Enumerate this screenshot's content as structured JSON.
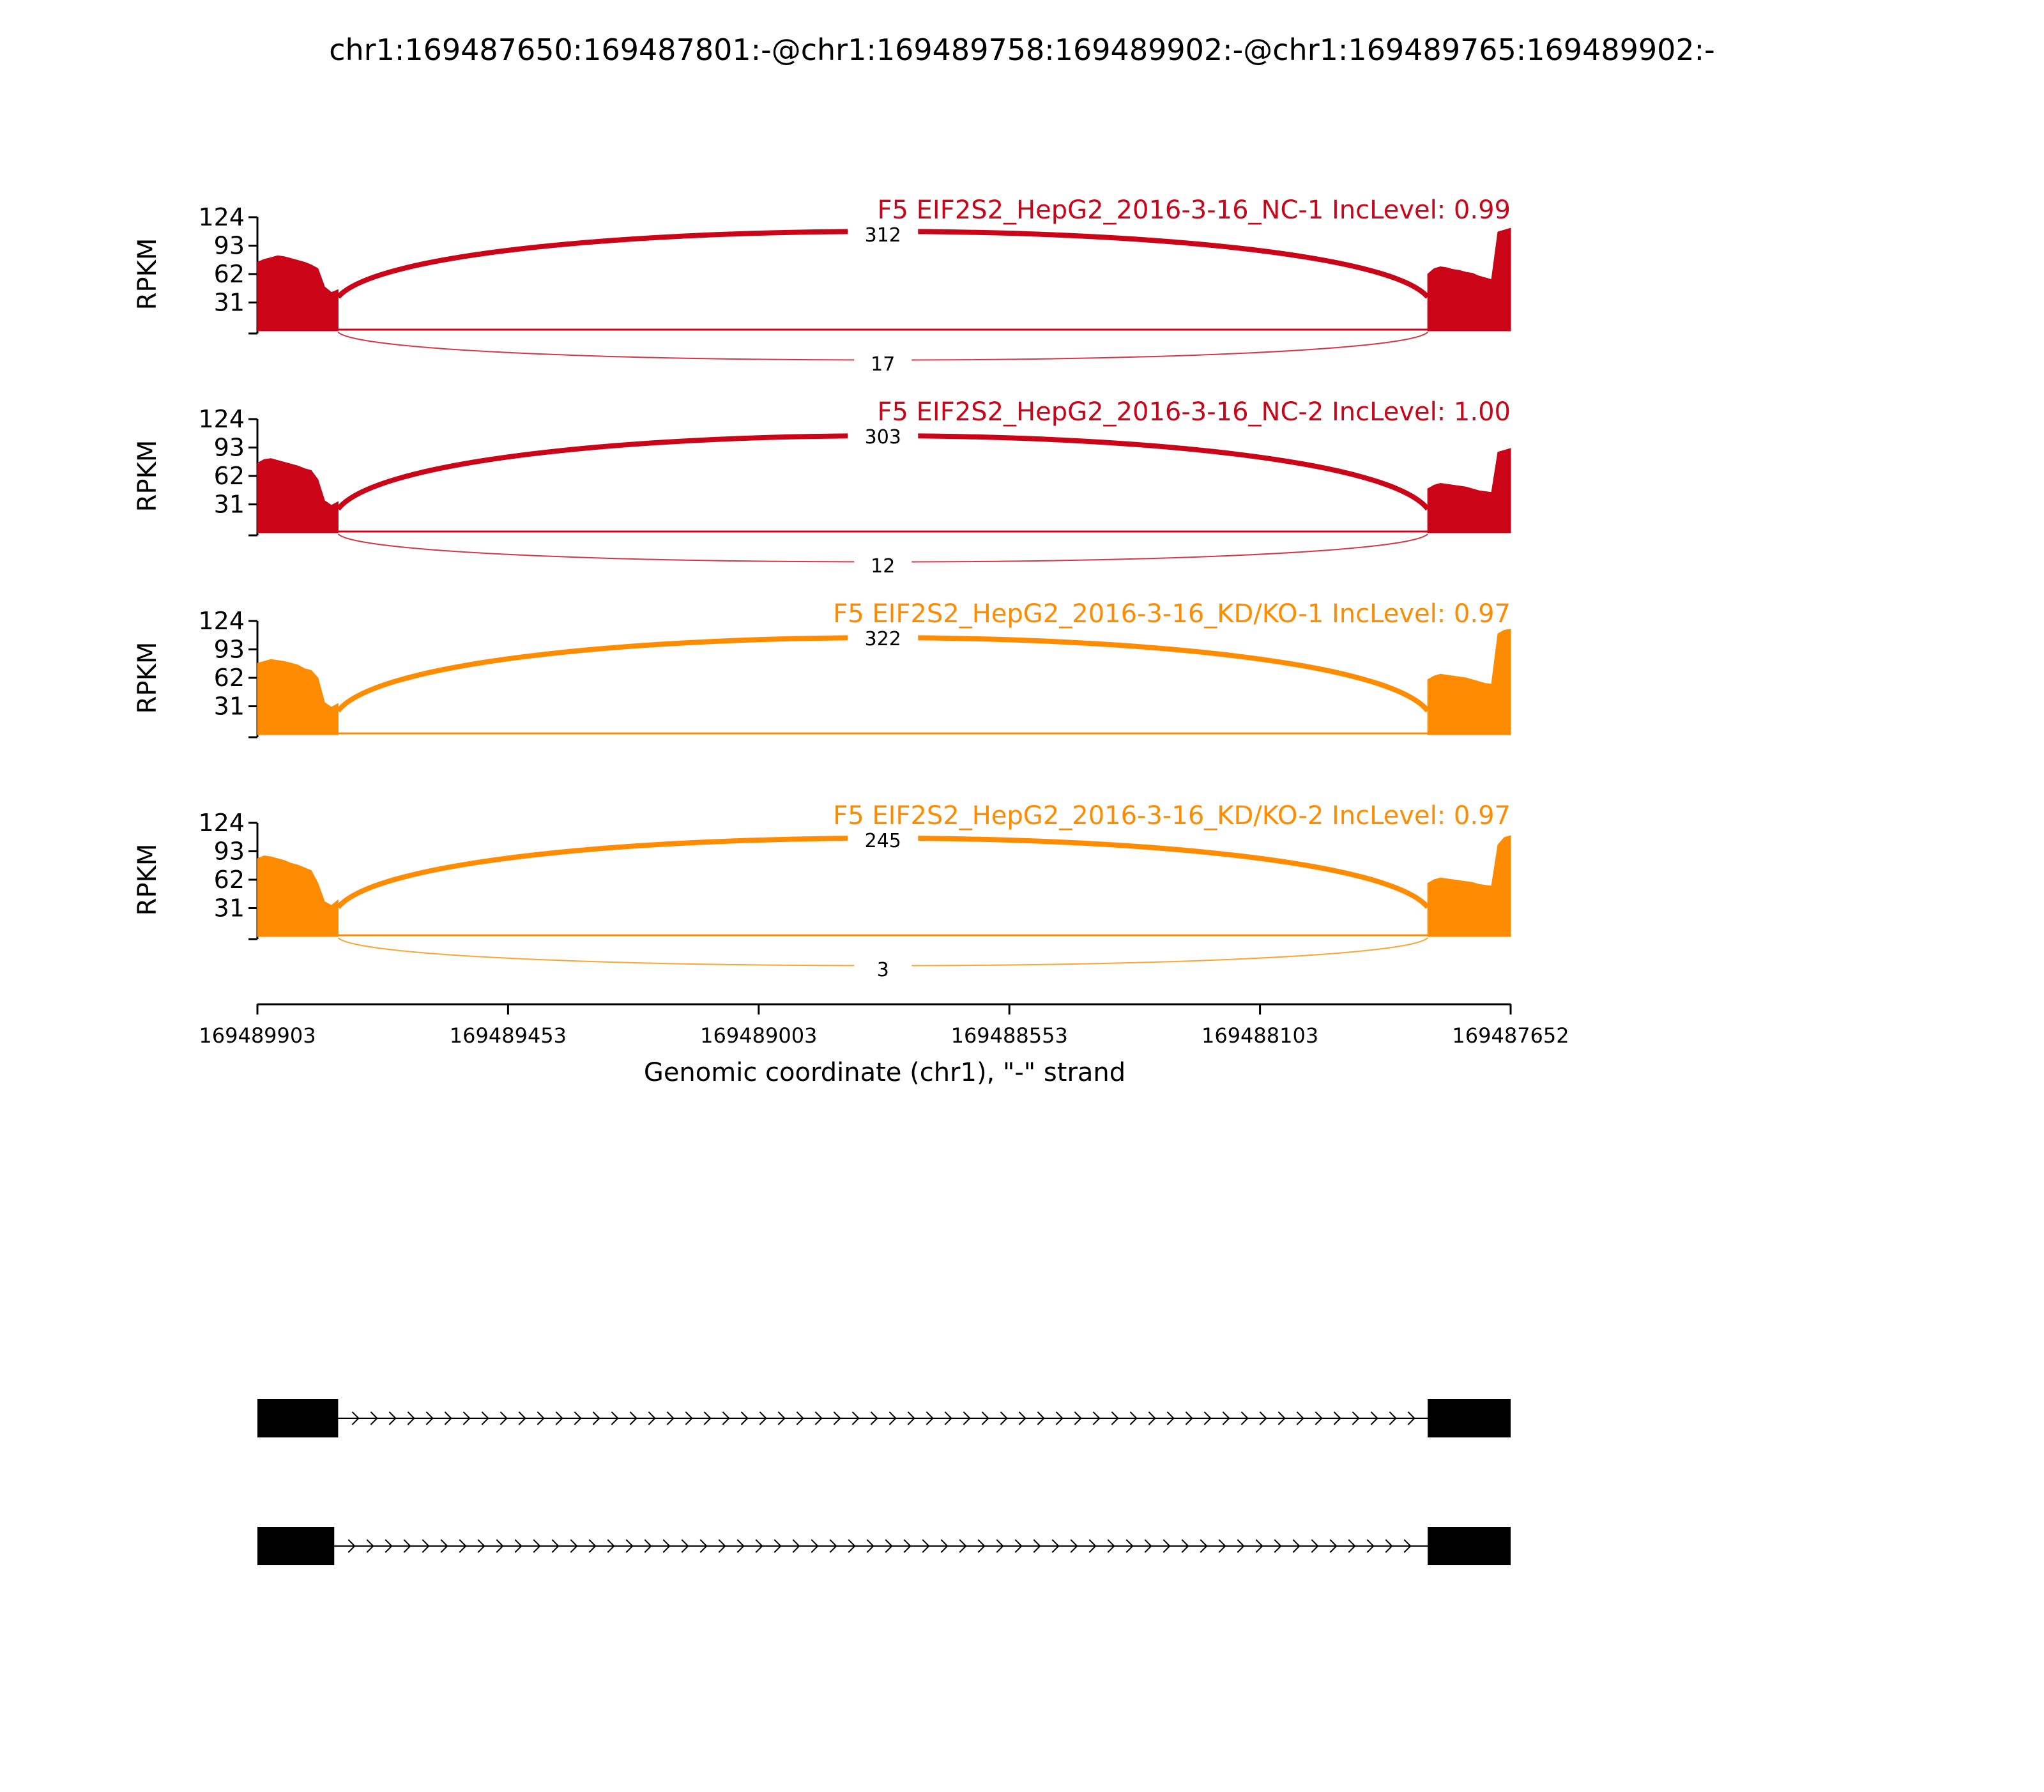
{
  "chart_data": {
    "type": "area",
    "title": "chr1:169487650:169487801:-@chr1:169489758:169489902:-@chr1:169489765:169489902:-",
    "xlabel": "Genomic coordinate (chr1), \"-\" strand",
    "ylabel": "RPKM",
    "x_axis": {
      "reversed": true,
      "xlim": [
        169489903,
        169487652
      ],
      "ticks": [
        "169489903",
        "169489453",
        "169489003",
        "169488553",
        "169488103",
        "169487652"
      ]
    },
    "y_axis": {
      "ylim": [
        0,
        124
      ],
      "ticks": [
        "124",
        "93",
        "62",
        "31"
      ]
    },
    "colors": {
      "NC": "#cc0418",
      "KD": "#ff8c00"
    },
    "exons": [
      {
        "start": 169489903,
        "end": 169489758
      },
      {
        "start": 169487801,
        "end": 169487652
      }
    ],
    "panels": [
      {
        "name": "F5 EIF2S2_HepG2_2016-3-16_NC-1 IncLevel: 0.99",
        "color": "#cc0418",
        "coverage": {
          "exon1": [
            75,
            78,
            80,
            82,
            81,
            79,
            77,
            75,
            72,
            68,
            48,
            42,
            45
          ],
          "exon2": [
            62,
            68,
            70,
            69,
            67,
            66,
            64,
            63,
            60,
            58,
            56,
            108,
            110,
            112
          ]
        },
        "junctions": [
          {
            "count": "312",
            "side": "above"
          },
          {
            "count": "17",
            "side": "below"
          }
        ]
      },
      {
        "name": "F5 EIF2S2_HepG2_2016-3-16_NC-2 IncLevel: 1.00",
        "color": "#cc0418",
        "coverage": {
          "exon1": [
            76,
            80,
            81,
            79,
            77,
            75,
            73,
            70,
            68,
            58,
            35,
            30,
            34
          ],
          "exon2": [
            48,
            52,
            54,
            53,
            52,
            51,
            50,
            48,
            46,
            45,
            44,
            88,
            90,
            92
          ]
        },
        "junctions": [
          {
            "count": "303",
            "side": "above"
          },
          {
            "count": "12",
            "side": "below"
          }
        ]
      },
      {
        "name": "F5 EIF2S2_HepG2_2016-3-16_KD/KO-1 IncLevel: 0.97",
        "color": "#ff8c00",
        "coverage": {
          "exon1": [
            78,
            80,
            82,
            81,
            80,
            78,
            76,
            72,
            70,
            62,
            35,
            30,
            34
          ],
          "exon2": [
            60,
            64,
            66,
            65,
            64,
            63,
            62,
            60,
            58,
            56,
            55,
            110,
            114,
            115
          ]
        },
        "junctions": [
          {
            "count": "322",
            "side": "above"
          }
        ]
      },
      {
        "name": "F5 EIF2S2_HepG2_2016-3-16_KD/KO-2 IncLevel: 0.97",
        "color": "#ff8c00",
        "coverage": {
          "exon1": [
            85,
            88,
            87,
            85,
            83,
            80,
            78,
            75,
            72,
            58,
            38,
            34,
            40
          ],
          "exon2": [
            58,
            62,
            64,
            63,
            62,
            61,
            60,
            59,
            57,
            56,
            55,
            100,
            108,
            110
          ]
        },
        "junctions": [
          {
            "count": "245",
            "side": "above"
          },
          {
            "count": "3",
            "side": "below"
          }
        ]
      }
    ],
    "transcripts": [
      {
        "exon1_end": 169489758
      },
      {
        "exon1_end": 169489765
      }
    ]
  }
}
